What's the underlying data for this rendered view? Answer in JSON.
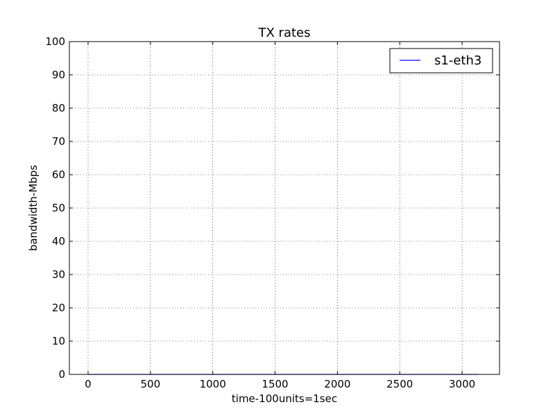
{
  "chart_data": {
    "type": "line",
    "title": "TX rates",
    "xlabel": "time-100units=1sec",
    "ylabel": "bandwidth-Mbps",
    "xlim": [
      -150,
      3300
    ],
    "ylim": [
      0,
      100
    ],
    "xticks": [
      0,
      500,
      1000,
      1500,
      2000,
      2500,
      3000
    ],
    "yticks": [
      0,
      10,
      20,
      30,
      40,
      50,
      60,
      70,
      80,
      90,
      100
    ],
    "grid": true,
    "legend_position": "top-right",
    "series": [
      {
        "name": "s1-eth3",
        "color": "#0000ff",
        "x": [
          0,
          500,
          1000,
          1500,
          2000,
          2500,
          3000,
          3130
        ],
        "y": [
          0,
          0,
          0,
          0,
          0,
          0,
          0,
          0
        ]
      }
    ]
  }
}
